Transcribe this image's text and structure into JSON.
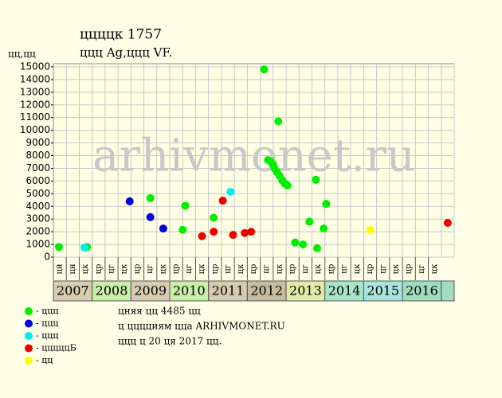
{
  "chart_data": {
    "type": "scatter",
    "title": "ццццк 1757",
    "subtitle": "ццц Ag,ццц VF.",
    "y_label": "цц,цц",
    "watermark": "arhivmonet.ru",
    "xlim": [
      0,
      31
    ],
    "ylim": [
      0,
      15250
    ],
    "yticks": [
      0,
      1000,
      2000,
      3000,
      4000,
      5000,
      6000,
      7000,
      8000,
      9000,
      10000,
      11000,
      12000,
      13000,
      14000,
      15000
    ],
    "grid": true,
    "column_labels": [
      "цй",
      "цн",
      "цк",
      "цр",
      "цг",
      "цк",
      "цр",
      "цг",
      "цк",
      "цр",
      "цг",
      "цк",
      "цр",
      "цг",
      "цк",
      "цр",
      "цг",
      "цк",
      "цр",
      "цг",
      "цк",
      "цр",
      "цг",
      "цк",
      "цр",
      "цг",
      "цк",
      "цр",
      "цг",
      "цк"
    ],
    "years": [
      {
        "label": "2007",
        "color": "#d8ccb0"
      },
      {
        "label": "2008",
        "color": "#c8f0a8"
      },
      {
        "label": "2009",
        "color": "#d8ccb0"
      },
      {
        "label": "2010",
        "color": "#c8f0a8"
      },
      {
        "label": "2011",
        "color": "#d8ccb0"
      },
      {
        "label": "2012",
        "color": "#c8bca0"
      },
      {
        "label": "2013",
        "color": "#e0eca8"
      },
      {
        "label": "2014",
        "color": "#a8e4c8"
      },
      {
        "label": "2015",
        "color": "#a8e4dc"
      },
      {
        "label": "2016",
        "color": "#a0dcc0"
      }
    ],
    "series": [
      {
        "name": "- ццц",
        "color": "#00ee00",
        "x": [
          0.43,
          2.6,
          7.5,
          10.2,
          10.0,
          12.4,
          16.3,
          17.4,
          16.6,
          16.8,
          17.0,
          17.1,
          17.3,
          17.5,
          17.7,
          17.9,
          18.1,
          18.7,
          19.3,
          19.8,
          20.3,
          20.4,
          20.9,
          21.1
        ],
        "values": [
          800,
          800,
          4650,
          4050,
          2150,
          3100,
          14800,
          10700,
          7650,
          7550,
          7300,
          7000,
          6700,
          6400,
          6050,
          5800,
          5650,
          1150,
          1000,
          2800,
          6100,
          700,
          2250,
          4200
        ]
      },
      {
        "name": "- ццц",
        "color": "#0000dd",
        "x": [
          5.9,
          7.5,
          8.5
        ],
        "values": [
          4400,
          3150,
          2250
        ]
      },
      {
        "name": "- ццц",
        "color": "#00eeee",
        "x": [
          2.4,
          13.7
        ],
        "values": [
          750,
          5150
        ]
      },
      {
        "name": "- цццццБ",
        "color": "#ee0000",
        "x": [
          11.5,
          12.4,
          13.1,
          13.9,
          14.8,
          15.3,
          30.5
        ],
        "values": [
          1650,
          2000,
          4450,
          1750,
          1900,
          2000,
          2700
        ]
      },
      {
        "name": "- цц",
        "color": "#ffff00",
        "x": [
          24.5
        ],
        "values": [
          2150
        ]
      }
    ],
    "notes": [
      "цняя цц 4485 цц",
      "ц цццциям цца ARHIVMONET.RU",
      "ццц ц 20 ця 2017 цц."
    ]
  }
}
